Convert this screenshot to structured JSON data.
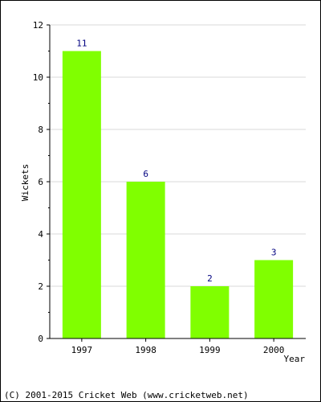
{
  "chart_data": {
    "type": "bar",
    "categories": [
      "1997",
      "1998",
      "1999",
      "2000"
    ],
    "values": [
      11,
      6,
      2,
      3
    ],
    "xlabel": "Year",
    "ylabel": "Wickets",
    "ylim": [
      0,
      12
    ],
    "yticks": [
      0,
      2,
      4,
      6,
      8,
      10,
      12
    ],
    "grid": true,
    "bar_color": "#80ff00",
    "value_label_color": "#000080"
  },
  "footer": {
    "copyright": "(C) 2001-2015 Cricket Web (www.cricketweb.net)"
  }
}
